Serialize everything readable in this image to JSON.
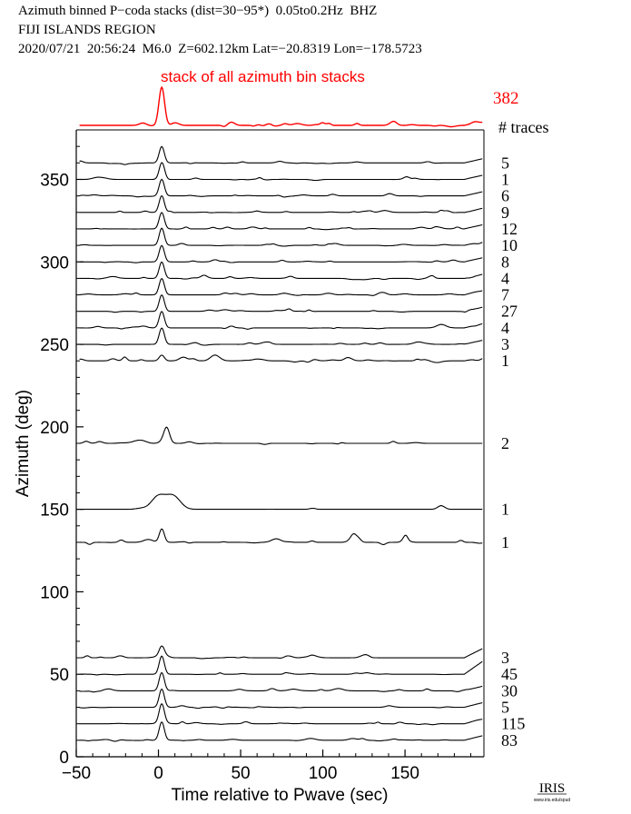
{
  "header": {
    "line1": "Azimuth binned P−coda stacks (dist=30−95*)  0.05to0.2Hz  BHZ",
    "line2": "FIJI ISLANDS REGION",
    "line3": "2020/07/21  20:56:24  M6.0  Z=602.12km Lat=−20.8319 Lon=−178.5723"
  },
  "chart_data": {
    "type": "line",
    "top_panel": {
      "label": "stack of all azimuth bin stacks",
      "total_traces": "382",
      "color": "#ff0000"
    },
    "traces_header": "# traces",
    "xlabel": "Time relative to Pwave (sec)",
    "ylabel": "Azimuth (deg)",
    "xlim": [
      -50,
      198
    ],
    "ylim": [
      0,
      380
    ],
    "xticks": [
      {
        "value": -50,
        "label": "−50"
      },
      {
        "value": 0,
        "label": "0"
      },
      {
        "value": 50,
        "label": "50"
      },
      {
        "value": 100,
        "label": "100"
      },
      {
        "value": 150,
        "label": "150"
      }
    ],
    "yticks": [
      {
        "value": 0,
        "label": "0"
      },
      {
        "value": 50,
        "label": "50"
      },
      {
        "value": 100,
        "label": "100"
      },
      {
        "value": 150,
        "label": "150"
      },
      {
        "value": 200,
        "label": "200"
      },
      {
        "value": 250,
        "label": "250"
      },
      {
        "value": 300,
        "label": "300"
      },
      {
        "value": 350,
        "label": "350"
      }
    ],
    "series": [
      {
        "azimuth": 360,
        "traces": "5"
      },
      {
        "azimuth": 350,
        "traces": "1"
      },
      {
        "azimuth": 340,
        "traces": "6"
      },
      {
        "azimuth": 330,
        "traces": "9"
      },
      {
        "azimuth": 320,
        "traces": "12"
      },
      {
        "azimuth": 310,
        "traces": "10"
      },
      {
        "azimuth": 300,
        "traces": "8"
      },
      {
        "azimuth": 290,
        "traces": "4"
      },
      {
        "azimuth": 280,
        "traces": "7"
      },
      {
        "azimuth": 270,
        "traces": "27"
      },
      {
        "azimuth": 260,
        "traces": "4"
      },
      {
        "azimuth": 250,
        "traces": "3"
      },
      {
        "azimuth": 240,
        "traces": "1"
      },
      {
        "azimuth": 190,
        "traces": "2"
      },
      {
        "azimuth": 150,
        "traces": "1"
      },
      {
        "azimuth": 130,
        "traces": "1"
      },
      {
        "azimuth": 60,
        "traces": "3"
      },
      {
        "azimuth": 50,
        "traces": "45"
      },
      {
        "azimuth": 40,
        "traces": "30"
      },
      {
        "azimuth": 30,
        "traces": "5"
      },
      {
        "azimuth": 20,
        "traces": "115"
      },
      {
        "azimuth": 10,
        "traces": "83"
      }
    ]
  },
  "logo": {
    "name": "IRIS",
    "url": "www.iris.edu/spud"
  }
}
